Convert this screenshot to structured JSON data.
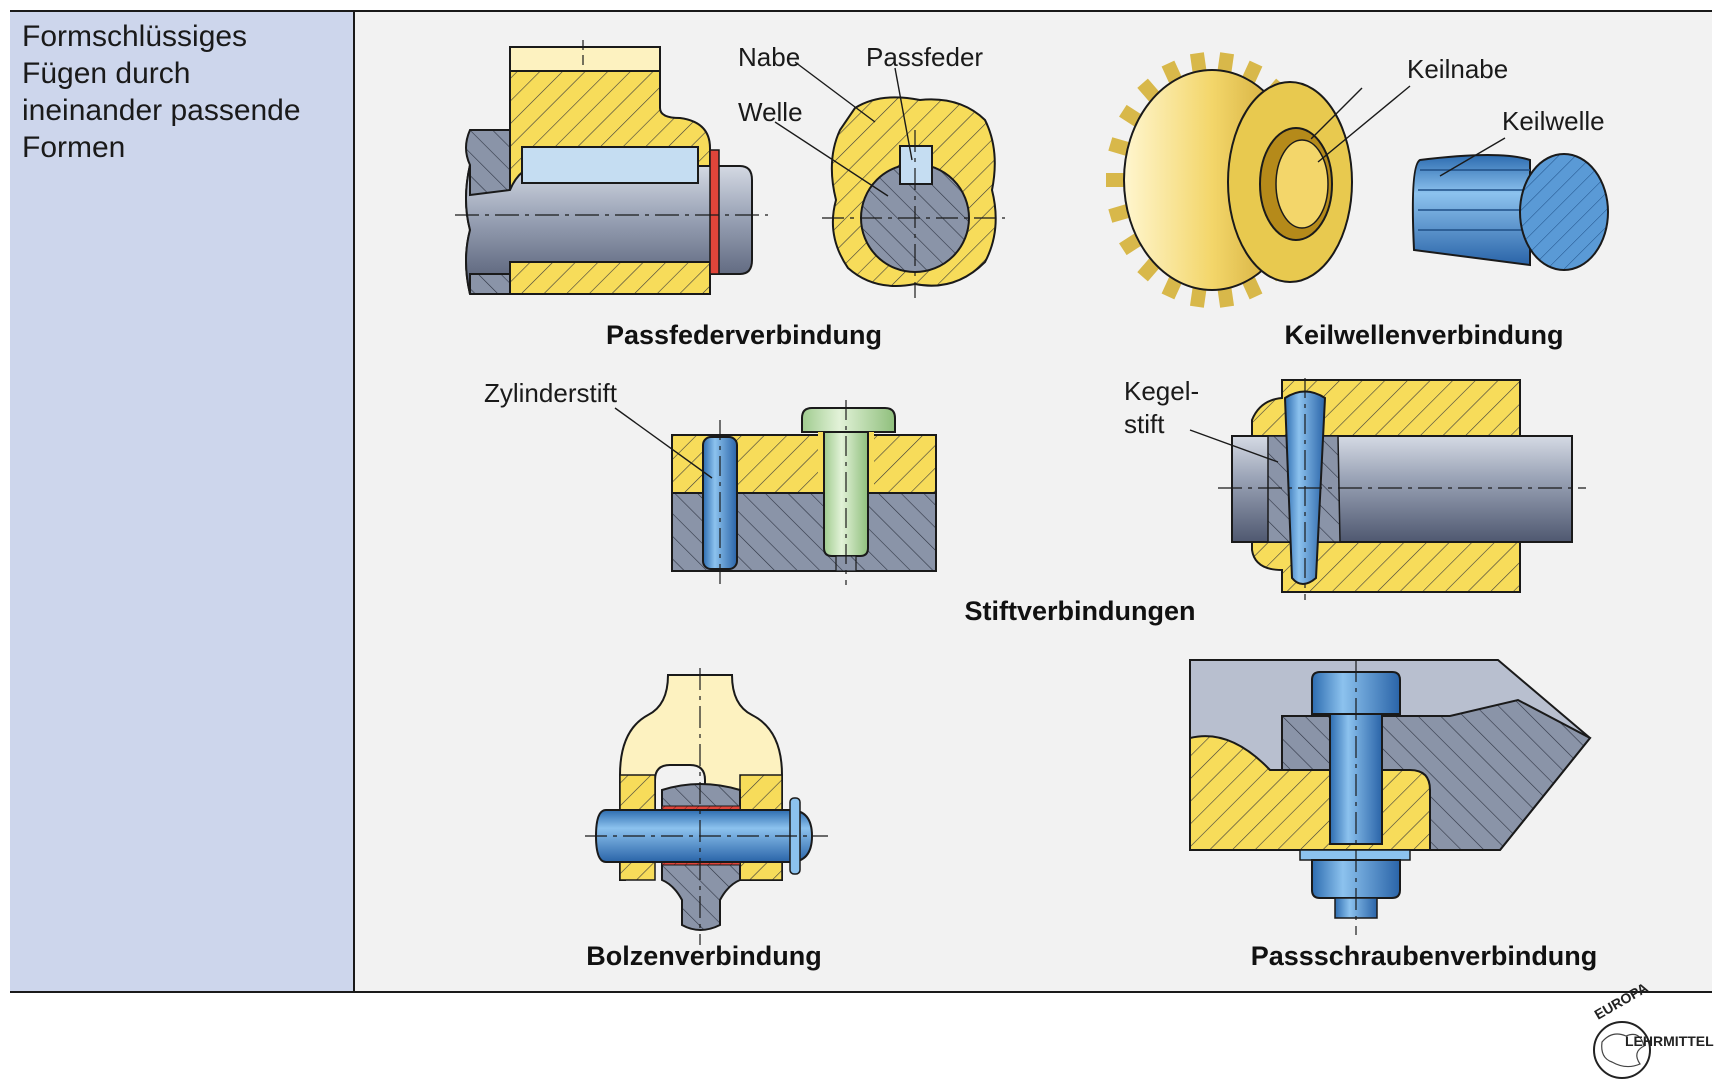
{
  "description": {
    "line1": "Formschlüssiges",
    "line2": "Fügen durch",
    "line3": "ineinander passende",
    "line4": "Formen"
  },
  "labels": {
    "nabe": "Nabe",
    "passfeder": "Passfeder",
    "welle": "Welle",
    "keilnabe": "Keilnabe",
    "keilwelle": "Keilwelle",
    "zylinderstift": "Zylinderstift",
    "kegel_1": "Kegel-",
    "kegel_2": "stift"
  },
  "captions": {
    "passfeder": "Passfederverbindung",
    "keilwellen": "Keilwellenverbindung",
    "stift": "Stiftverbindungen",
    "bolzen": "Bolzenverbindung",
    "passschrauben": "Passschraubenverbindung"
  },
  "logo": {
    "top": "EUROPA",
    "bottom": "LEHRMITTEL"
  },
  "colors": {
    "panel_bg": "#f2f2f2",
    "sidebar_bg": "#cdd6ec",
    "hub_yellow": "#f7dc5a",
    "pale_yellow": "#fdf2c0",
    "steel_gray": "#8a94a8",
    "pin_blue": "#5a9ad6",
    "key_blue": "#c5ddf2",
    "seal_red": "#e0453a",
    "bolt_green": "#c3e0b4"
  }
}
